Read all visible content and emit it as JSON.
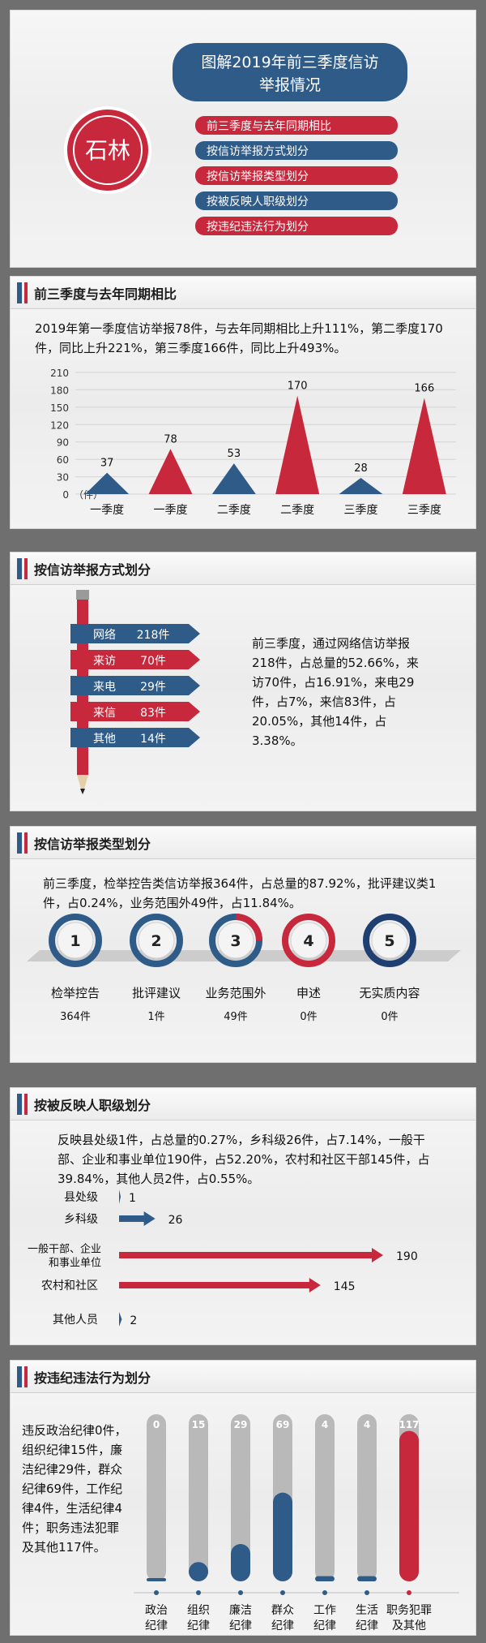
{
  "header": {
    "title_line1": "图解2019年前三季度信访",
    "title_line2": "举报情况",
    "badge": "石林",
    "menu": [
      {
        "label": "前三季度与去年同期相比",
        "color": "#c8283c"
      },
      {
        "label": "按信访举报方式划分",
        "color": "#2f5b88"
      },
      {
        "label": "按信访举报类型划分",
        "color": "#c8283c"
      },
      {
        "label": "按被反映人职级划分",
        "color": "#2f5b88"
      },
      {
        "label": "按违纪违法行为划分",
        "color": "#c8283c"
      }
    ]
  },
  "colors": {
    "red": "#c8283c",
    "blue": "#2f5b88",
    "grey": "#b9b9b9"
  },
  "sections": {
    "s1": {
      "title": "前三季度与去年同期相比",
      "text": "2019年第一季度信访举报78件，与去年同期相比上升111%，第二季度170件，同比上升221%，第三季度166件，同比上升493%。"
    },
    "s2": {
      "title": "按信访举报方式划分",
      "text": "前三季度，通过网络信访举报218件，占总量的52.66%，来访70件，占16.91%，来电29件，占7%，来信83件，占20.05%，其他14件，占3.38%。"
    },
    "s3": {
      "title": "按信访举报类型划分",
      "text": "前三季度，检举控告类信访举报364件，占总量的87.92%，批评建议类1件，占0.24%，业务范围外49件，占11.84%。"
    },
    "s4": {
      "title": "按被反映人职级划分",
      "text": "反映县处级1件，占总量的0.27%，乡科级26件，占7.14%，一般干部、企业和事业单位190件，占52.20%，农村和社区干部145件，占39.84%，其他人员2件，占0.55%。"
    },
    "s5": {
      "title": "按违纪违法行为划分",
      "text": "违反政治纪律0件，组织纪律15件，廉洁纪律29件，群众纪律69件，工作纪律4件，生活纪律4件；职务违法犯罪及其他117件。"
    }
  },
  "chart_data": [
    {
      "type": "bar",
      "ylim": [
        0,
        210
      ],
      "yticks": [
        0,
        30,
        60,
        90,
        120,
        150,
        180,
        210
      ],
      "y_unit": "（件）",
      "categories": [
        "一季度",
        "一季度",
        "二季度",
        "二季度",
        "三季度",
        "三季度"
      ],
      "values": [
        37,
        78,
        53,
        170,
        28,
        166
      ],
      "colors": [
        "#2f5b88",
        "#c8283c",
        "#2f5b88",
        "#c8283c",
        "#2f5b88",
        "#c8283c"
      ]
    },
    {
      "type": "bar",
      "categories": [
        "网络",
        "来访",
        "来电",
        "来信",
        "其他"
      ],
      "values": [
        218,
        70,
        29,
        83,
        14
      ],
      "labels": [
        "218件",
        "70件",
        "29件",
        "83件",
        "14件"
      ],
      "colors": [
        "#2f5b88",
        "#c8283c",
        "#2f5b88",
        "#c8283c",
        "#2f5b88"
      ]
    },
    {
      "type": "bar",
      "numbers": [
        "1",
        "2",
        "3",
        "4",
        "5"
      ],
      "categories": [
        "检举控告",
        "批评建议",
        "业务范围外",
        "申述",
        "无实质内容"
      ],
      "values": [
        364,
        1,
        49,
        0,
        0
      ],
      "labels": [
        "364件",
        "1件",
        "49件",
        "0件",
        "0件"
      ],
      "colors": [
        "#2f5b88",
        "#2f5b88",
        "#2f5b88",
        "#c8283c",
        "#1f3f73"
      ]
    },
    {
      "type": "bar",
      "categories": [
        "县处级",
        "乡科级",
        "一般干部、企业和事业单位",
        "农村和社区",
        "其他人员"
      ],
      "category_lines": [
        [
          "县处级"
        ],
        [
          "乡科级"
        ],
        [
          "一般干部、企业",
          "和事业单位"
        ],
        [
          "农村和社区"
        ],
        [
          "其他人员"
        ]
      ],
      "values": [
        1,
        26,
        190,
        145,
        2
      ],
      "colors": [
        "#2f5b88",
        "#2f5b88",
        "#c8283c",
        "#c8283c",
        "#2f5b88"
      ]
    },
    {
      "type": "bar",
      "ylim": [
        0,
        130
      ],
      "categories": [
        "政治纪律",
        "组织纪律",
        "廉洁纪律",
        "群众纪律",
        "工作纪律",
        "生活纪律",
        "职务犯罪及其他"
      ],
      "category_lines": [
        [
          "政治",
          "纪律"
        ],
        [
          "组织",
          "纪律"
        ],
        [
          "廉洁",
          "纪律"
        ],
        [
          "群众",
          "纪律"
        ],
        [
          "工作",
          "纪律"
        ],
        [
          "生活",
          "纪律"
        ],
        [
          "职务犯罪",
          "及其他"
        ]
      ],
      "values": [
        0,
        15,
        29,
        69,
        4,
        4,
        117
      ],
      "colors": [
        "#2f5b88",
        "#2f5b88",
        "#2f5b88",
        "#2f5b88",
        "#2f5b88",
        "#2f5b88",
        "#c8283c"
      ]
    }
  ]
}
